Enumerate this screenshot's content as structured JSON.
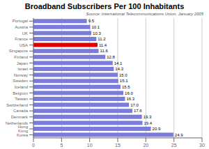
{
  "chart_data": {
    "type": "bar",
    "orientation": "horizontal",
    "title": "Broadband Subscribers Per 100 Inhabitants",
    "annotations": [
      "Source: International Telecommunications Union, January 2005"
    ],
    "categories": [
      "Portugal",
      "Austria",
      "UK",
      "France",
      "USA",
      "Singapore",
      "Finland",
      "Japan",
      "Israel",
      "Norway",
      "Sweden",
      "Iceland",
      "Belgium",
      "Taiwan",
      "Switzerland",
      "Canada",
      "Denmark",
      "Netherlands",
      "Hong Kong",
      "Korea"
    ],
    "values": [
      9.5,
      10.1,
      10.3,
      11.2,
      11.4,
      11.6,
      12.8,
      14.1,
      14.3,
      15.0,
      15.1,
      15.5,
      16.0,
      16.3,
      17.0,
      17.6,
      19.3,
      19.4,
      20.9,
      24.9
    ],
    "value_labels": [
      "9.5",
      "10.1",
      "10.3",
      "11.2",
      "11.4",
      "11.6",
      "12.8",
      "14.1",
      "14.3",
      "15.0",
      "15.1",
      "15.5",
      "16.0",
      "16.3",
      "17.0",
      "17.6",
      "19.3",
      "19.4",
      "20.9",
      "24.9"
    ],
    "colors": [
      "#7b7bdb",
      "#7b7bdb",
      "#7b7bdb",
      "#7b7bdb",
      "#dd0000",
      "#7b7bdb",
      "#7b7bdb",
      "#7b7bdb",
      "#7b7bdb",
      "#7b7bdb",
      "#7b7bdb",
      "#7b7bdb",
      "#7b7bdb",
      "#7b7bdb",
      "#7b7bdb",
      "#7b7bdb",
      "#7b7bdb",
      "#7b7bdb",
      "#7b7bdb",
      "#7b7bdb"
    ],
    "xlim": [
      0,
      30
    ],
    "xticks": [
      0,
      5,
      10,
      15,
      20,
      25,
      30
    ],
    "grid": true,
    "data_labels": true
  }
}
